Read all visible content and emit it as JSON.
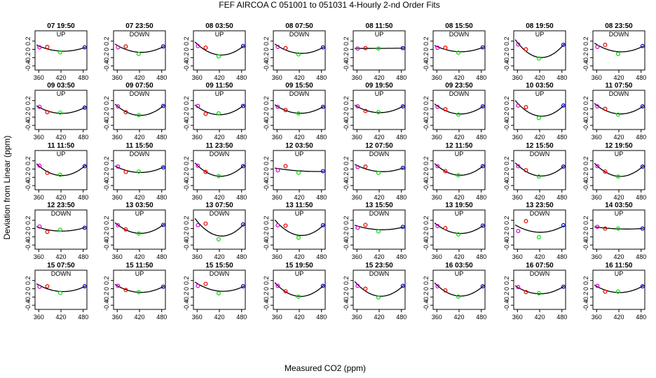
{
  "title": "FEF   AIRCOA C   051001 to 051031   4-Hourly 2-nd Order Fits",
  "xlabel": "Measured CO2 (ppm)",
  "ylabel": "Deviation from Linear (ppm)",
  "colors": {
    "s1": "#cc00cc",
    "s2": "#ee0000",
    "s3": "#00dd00",
    "s4": "#0000cc",
    "fit": "#000000",
    "frame": "#000000"
  },
  "chart_data": {
    "type": "scatter",
    "rows": 5,
    "cols": 8,
    "xlim": [
      350,
      490
    ],
    "ylim": [
      -0.5,
      0.45
    ],
    "x_ticks": [
      360,
      420,
      480
    ],
    "y_ticks": [
      -0.4,
      -0.2,
      0.0,
      0.2
    ],
    "y_tick_labels": [
      "-0.4",
      "-0.2",
      "0",
      "0.2"
    ],
    "x": [
      362,
      383,
      418,
      484
    ],
    "panels": [
      {
        "title": "07 19:50",
        "direction": "UP",
        "y": [
          0.05,
          0.06,
          -0.07,
          0.05
        ]
      },
      {
        "title": "07 23:50",
        "direction": "DOWN",
        "y": [
          0.05,
          0.07,
          -0.11,
          0.07
        ]
      },
      {
        "title": "08 03:50",
        "direction": "UP",
        "y": [
          0.08,
          0.04,
          -0.17,
          0.08
        ]
      },
      {
        "title": "08 07:50",
        "direction": "DOWN",
        "y": [
          0.06,
          0.03,
          -0.12,
          0.05
        ]
      },
      {
        "title": "08 11:50",
        "direction": "UP",
        "y": [
          0.02,
          0.03,
          0.02,
          0.03
        ]
      },
      {
        "title": "08 15:50",
        "direction": "DOWN",
        "y": [
          0.04,
          0.04,
          -0.08,
          0.05
        ]
      },
      {
        "title": "08 19:50",
        "direction": "UP",
        "y": [
          0.12,
          0.0,
          -0.22,
          0.11
        ]
      },
      {
        "title": "08 23:50",
        "direction": "DOWN",
        "y": [
          0.06,
          0.11,
          -0.11,
          0.08
        ]
      },
      {
        "title": "09 03:50",
        "direction": "UP",
        "y": [
          0.05,
          -0.08,
          -0.09,
          0.03
        ]
      },
      {
        "title": "09 07:50",
        "direction": "DOWN",
        "y": [
          0.06,
          -0.08,
          -0.15,
          0.07
        ]
      },
      {
        "title": "09 11:50",
        "direction": "UP",
        "y": [
          0.07,
          -0.12,
          -0.11,
          0.07
        ]
      },
      {
        "title": "09 15:50",
        "direction": "DOWN",
        "y": [
          0.05,
          -0.03,
          -0.11,
          0.05
        ]
      },
      {
        "title": "09 19:50",
        "direction": "UP",
        "y": [
          0.06,
          -0.05,
          -0.08,
          0.06
        ]
      },
      {
        "title": "09 23:50",
        "direction": "DOWN",
        "y": [
          0.05,
          -0.01,
          -0.14,
          0.06
        ]
      },
      {
        "title": "10 03:50",
        "direction": "UP",
        "y": [
          0.08,
          0.04,
          -0.22,
          0.08
        ]
      },
      {
        "title": "11 07:50",
        "direction": "DOWN",
        "y": [
          0.06,
          0.0,
          -0.14,
          0.06
        ]
      },
      {
        "title": "11 11:50",
        "direction": "UP",
        "y": [
          0.08,
          -0.09,
          -0.14,
          0.07
        ]
      },
      {
        "title": "11 15:50",
        "direction": "DOWN",
        "y": [
          0.06,
          -0.07,
          -0.06,
          0.04
        ]
      },
      {
        "title": "11 23:50",
        "direction": "DOWN",
        "y": [
          0.08,
          -0.07,
          -0.17,
          0.07
        ]
      },
      {
        "title": "12 03:50",
        "direction": "UP",
        "y": [
          -0.03,
          0.07,
          -0.09,
          -0.05
        ]
      },
      {
        "title": "12 07:50",
        "direction": "DOWN",
        "y": [
          0.05,
          0.06,
          -0.09,
          0.03
        ]
      },
      {
        "title": "12 11:50",
        "direction": "UP",
        "y": [
          0.07,
          -0.05,
          -0.15,
          0.07
        ]
      },
      {
        "title": "12 15:50",
        "direction": "DOWN",
        "y": [
          0.07,
          -0.03,
          -0.18,
          0.06
        ]
      },
      {
        "title": "12 19:50",
        "direction": "UP",
        "y": [
          0.07,
          -0.06,
          -0.18,
          0.06
        ]
      },
      {
        "title": "12 23:50",
        "direction": "DOWN",
        "y": [
          0.05,
          -0.08,
          -0.03,
          0.02
        ]
      },
      {
        "title": "13 03:50",
        "direction": "UP",
        "y": [
          0.08,
          -0.02,
          -0.12,
          0.09
        ]
      },
      {
        "title": "13 07:50",
        "direction": "DOWN",
        "y": [
          0.08,
          0.12,
          -0.26,
          0.1
        ]
      },
      {
        "title": "13 11:50",
        "direction": "UP",
        "y": [
          0.08,
          0.07,
          -0.22,
          0.08
        ]
      },
      {
        "title": "13 15:50",
        "direction": "DOWN",
        "y": [
          0.02,
          0.09,
          -0.07,
          0.04
        ]
      },
      {
        "title": "13 19:50",
        "direction": "UP",
        "y": [
          0.06,
          0.01,
          -0.14,
          0.07
        ]
      },
      {
        "title": "13 23:50",
        "direction": "DOWN",
        "y": [
          -0.06,
          0.18,
          -0.21,
          0.08
        ]
      },
      {
        "title": "14 03:50",
        "direction": "UP",
        "y": [
          0.04,
          0.0,
          0.0,
          0.0
        ]
      },
      {
        "title": "15 07:50",
        "direction": "DOWN",
        "y": [
          0.05,
          0.06,
          -0.1,
          0.06
        ]
      },
      {
        "title": "15 11:50",
        "direction": "UP",
        "y": [
          0.07,
          -0.03,
          -0.08,
          0.05
        ]
      },
      {
        "title": "15 15:50",
        "direction": "DOWN",
        "y": [
          0.07,
          0.12,
          -0.11,
          0.06
        ]
      },
      {
        "title": "15 19:50",
        "direction": "UP",
        "y": [
          0.07,
          -0.06,
          -0.19,
          0.07
        ]
      },
      {
        "title": "15 23:50",
        "direction": "DOWN",
        "y": [
          0.07,
          0.0,
          -0.21,
          0.07
        ]
      },
      {
        "title": "16 03:50",
        "direction": "UP",
        "y": [
          0.06,
          -0.04,
          -0.19,
          0.06
        ]
      },
      {
        "title": "16 07:50",
        "direction": "DOWN",
        "y": [
          0.04,
          -0.08,
          -0.11,
          0.05
        ]
      },
      {
        "title": "16 11:50",
        "direction": "UP",
        "y": [
          0.07,
          -0.07,
          -0.07,
          0.06
        ]
      }
    ]
  }
}
